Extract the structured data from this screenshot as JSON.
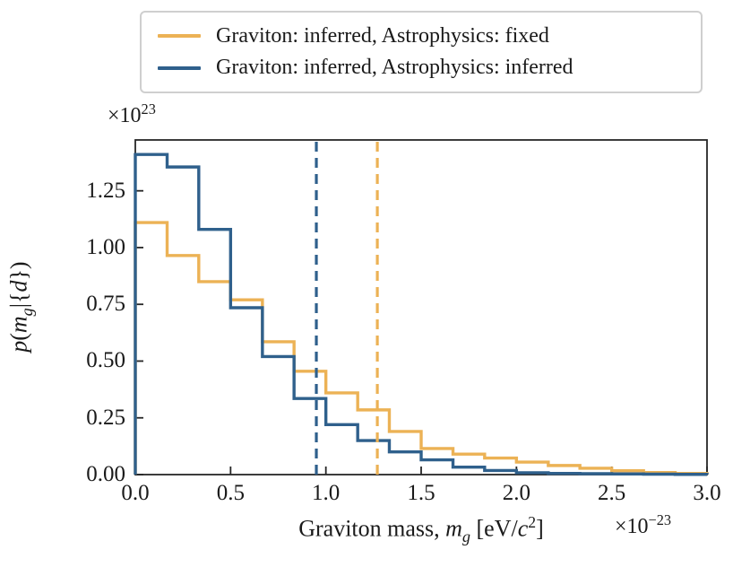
{
  "legend": {
    "items": [
      {
        "label": "Graviton: inferred, Astrophysics: fixed",
        "color": "#ecb255"
      },
      {
        "label": "Graviton: inferred, Astrophysics: inferred",
        "color": "#2f608c"
      }
    ]
  },
  "axes": {
    "xlabel": {
      "pre": "Graviton mass, ",
      "var1": "m",
      "sub1": "g",
      "mid": " [eV/",
      "var2": "c",
      "sup2": "2",
      "post": "]"
    },
    "ylabel": {
      "p": "p",
      "open": "(",
      "m": "m",
      "sub": "g",
      "mid": "|{",
      "d": "d",
      "close": "})"
    },
    "y_offset": {
      "base": "×10",
      "exp": "23"
    },
    "x_offset": {
      "base": "×10",
      "exp": "−23"
    }
  },
  "chart_data": {
    "type": "step-histogram",
    "title": "",
    "xlabel": "Graviton mass, m_g [eV/c^2]",
    "ylabel": "p(m_g|{d})",
    "x_scale_factor": "1e-23",
    "y_scale_factor": "1e+23",
    "xlim": [
      0,
      3.0
    ],
    "ylim": [
      0,
      1.474
    ],
    "grid": false,
    "legend_position": "top, above axes",
    "x_ticks": [
      {
        "value": 0.0,
        "label": "0.0"
      },
      {
        "value": 0.5,
        "label": "0.5"
      },
      {
        "value": 1.0,
        "label": "1.0"
      },
      {
        "value": 1.5,
        "label": "1.5"
      },
      {
        "value": 2.0,
        "label": "2.0"
      },
      {
        "value": 2.5,
        "label": "2.5"
      },
      {
        "value": 3.0,
        "label": "3.0"
      }
    ],
    "y_ticks": [
      {
        "value": 0.0,
        "label": "0.00"
      },
      {
        "value": 0.25,
        "label": "0.25"
      },
      {
        "value": 0.5,
        "label": "0.50"
      },
      {
        "value": 0.75,
        "label": "0.75"
      },
      {
        "value": 1.0,
        "label": "1.00"
      },
      {
        "value": 1.25,
        "label": "1.25"
      }
    ],
    "bin_edges": [
      0,
      0.167,
      0.333,
      0.5,
      0.667,
      0.833,
      1.0,
      1.167,
      1.333,
      1.5,
      1.667,
      1.833,
      2.0,
      2.167,
      2.333,
      2.5,
      2.667,
      2.833,
      3.0
    ],
    "series": [
      {
        "name": "Graviton: inferred, Astrophysics: fixed",
        "color": "#ecb255",
        "line_style": "solid",
        "values": [
          1.11,
          0.965,
          0.85,
          0.77,
          0.585,
          0.455,
          0.36,
          0.285,
          0.19,
          0.115,
          0.09,
          0.073,
          0.055,
          0.04,
          0.028,
          0.017,
          0.009,
          0.005
        ],
        "vline_x": 1.27,
        "vline_style": "dashed"
      },
      {
        "name": "Graviton: inferred, Astrophysics: inferred",
        "color": "#2f608c",
        "line_style": "solid",
        "values": [
          1.41,
          1.355,
          1.08,
          0.735,
          0.52,
          0.335,
          0.22,
          0.15,
          0.1,
          0.065,
          0.033,
          0.018,
          0.008,
          0.005,
          0.004,
          0.003,
          0.002,
          0.001
        ],
        "vline_x": 0.95,
        "vline_style": "dashed"
      }
    ]
  }
}
